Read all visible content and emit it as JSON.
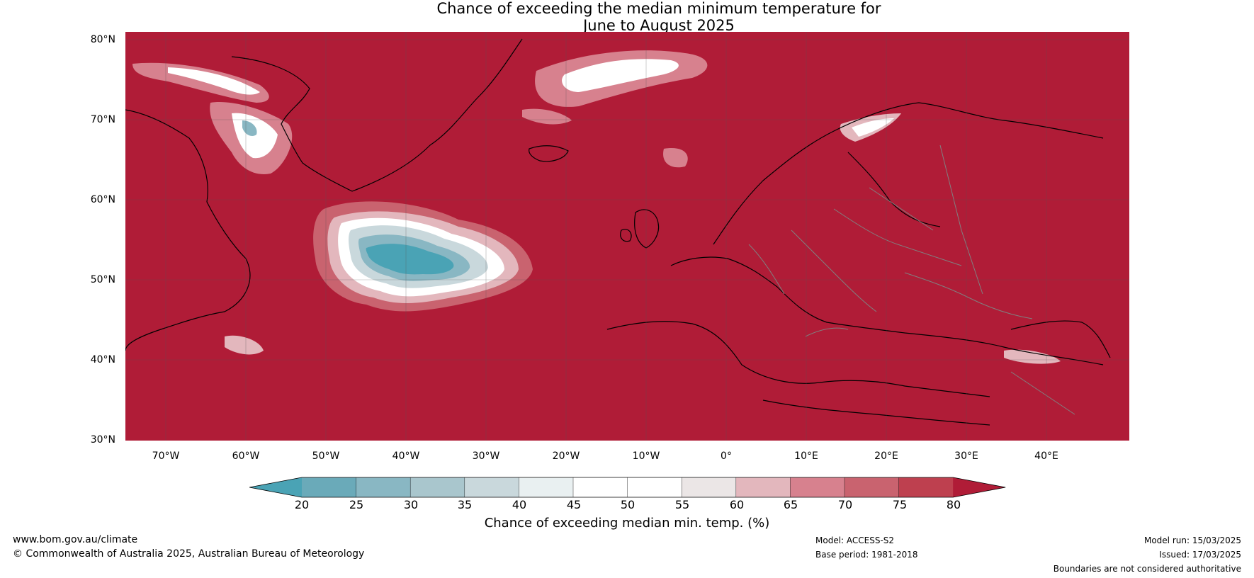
{
  "title": {
    "line1": "Chance of exceeding the median minimum temperature for",
    "line2": "June to August 2025"
  },
  "map": {
    "base_color": "#b01c37",
    "land_outline_color": "#000000",
    "border_color": "#808080",
    "lat_labels": [
      "80°N",
      "70°N",
      "60°N",
      "50°N",
      "40°N",
      "30°N"
    ],
    "lon_labels": [
      "70°W",
      "60°W",
      "50°W",
      "40°W",
      "30°W",
      "20°W",
      "10°W",
      "0°",
      "10°E",
      "20°E",
      "30°E",
      "40°E"
    ]
  },
  "colorbar": {
    "label": "Chance of exceeding median min. temp. (%)",
    "ticks": [
      "20",
      "25",
      "30",
      "35",
      "40",
      "45",
      "50",
      "55",
      "60",
      "65",
      "70",
      "75",
      "80"
    ],
    "colors": [
      "#4aa3b5",
      "#6aaab9",
      "#89b7c3",
      "#a9c6cd",
      "#c9d8dc",
      "#e9f0f1",
      "#ffffff",
      "#ffffff",
      "#ebe6e6",
      "#e3b7bd",
      "#d7818e",
      "#c9636f",
      "#be404f",
      "#b01c37"
    ]
  },
  "footer": {
    "website": "www.bom.gov.au/climate",
    "copyright": "© Commonwealth of Australia 2025, Australian Bureau of Meteorology",
    "model": "Model: ACCESS-S2",
    "base_period": "Base period: 1981-2018",
    "model_run": "Model run: 15/03/2025",
    "issued": "Issued: 17/03/2025",
    "disclaimer": "Boundaries are not considered authoritative"
  }
}
